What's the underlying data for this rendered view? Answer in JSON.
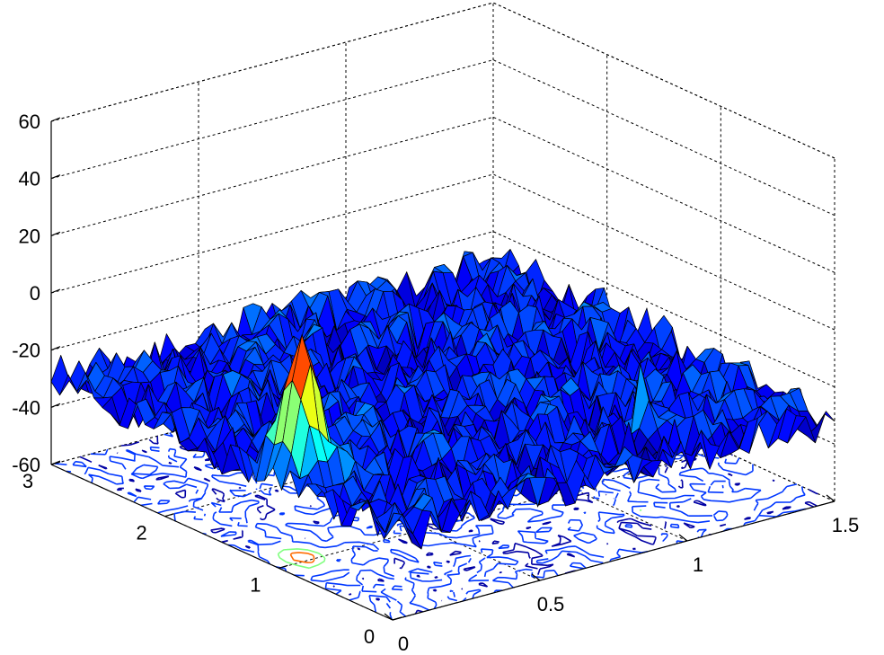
{
  "chart_data": {
    "type": "surface",
    "title": "",
    "xlabel": "",
    "ylabel": "",
    "zlabel": "",
    "xlim": [
      0,
      1.5
    ],
    "ylim": [
      0,
      3
    ],
    "zlim": [
      -60,
      60
    ],
    "x_ticks": [
      "0",
      "0.5",
      "1",
      "1.5"
    ],
    "y_ticks": [
      "0",
      "1",
      "2",
      "3"
    ],
    "z_ticks": [
      "-60",
      "-40",
      "-20",
      "0",
      "20",
      "40",
      "60"
    ],
    "grid": true,
    "colormap": "jet",
    "contour_projection": true,
    "noise_floor": -30,
    "surface_description": "noisy surface around -30 with a single sharp peak",
    "peaks": [
      {
        "x": 0.1,
        "y": 1.05,
        "z": 18
      },
      {
        "x": 1.05,
        "y": 0.5,
        "z": -3
      }
    ],
    "colors": {
      "low": "#00008f",
      "mid_low": "#0080ff",
      "mid": "#00ffff",
      "mid_high": "#ffff00",
      "high": "#ff0000"
    }
  }
}
